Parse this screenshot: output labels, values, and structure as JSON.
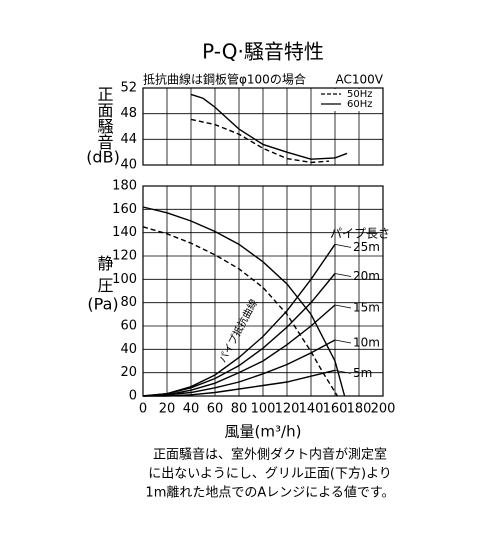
{
  "title": "P-Q·騒音特性",
  "subtitle": "抵抗曲線は鋼板管φ100の場合",
  "power": "AC100V",
  "x_label": "風量(m³/h)",
  "notes": [
    "正面騒音は、室外側ダクト内音が測定室",
    "に出ないようにし、グリル正面(下方)より",
    "1m離れた地点でのAレンジによる値です。"
  ],
  "chart_data": [
    {
      "type": "line",
      "y_label": "正面騒音",
      "y_unit": "(dB)",
      "legend": "upper right",
      "grid": true,
      "xlim": [
        0,
        200
      ],
      "xticks": [
        0,
        20,
        40,
        60,
        80,
        100,
        120,
        140,
        160,
        180,
        200
      ],
      "ylim": [
        40,
        52
      ],
      "yticks": [
        40,
        44,
        48,
        52
      ],
      "series": [
        {
          "name": "50Hz",
          "color": "#000000",
          "dash": true,
          "x": [
            40,
            60,
            80,
            100,
            120,
            140,
            155
          ],
          "values": [
            47.1,
            46.3,
            44.8,
            42.6,
            41,
            40.4,
            40.6
          ]
        },
        {
          "name": "60Hz",
          "color": "#000000",
          "dash": false,
          "x": [
            40,
            50,
            60,
            80,
            100,
            120,
            140,
            160,
            170
          ],
          "values": [
            51,
            50.4,
            49,
            45.6,
            43.2,
            42,
            40.9,
            41.1,
            41.8
          ]
        }
      ]
    },
    {
      "type": "line",
      "y_label": "静圧",
      "y_unit": "(Pa)",
      "grid": true,
      "annotation": "パイプ抵抗曲線",
      "series_title": "パイプ長さ",
      "xlim": [
        0,
        200
      ],
      "xticks": [
        0,
        20,
        40,
        60,
        80,
        100,
        120,
        140,
        160,
        180,
        200
      ],
      "ylim": [
        0,
        180
      ],
      "yticks": [
        0,
        20,
        40,
        60,
        80,
        100,
        120,
        140,
        160,
        180
      ],
      "series": [
        {
          "color": "#000000",
          "dash": true,
          "x": [
            0,
            20,
            40,
            60,
            80,
            100,
            120,
            140,
            150,
            162
          ],
          "values": [
            145,
            139,
            131,
            121,
            109,
            93,
            70,
            38,
            20,
            0
          ]
        },
        {
          "color": "#000000",
          "dash": false,
          "x": [
            0,
            20,
            40,
            60,
            80,
            100,
            120,
            140,
            160,
            168
          ],
          "values": [
            162,
            157,
            150,
            141,
            130,
            115,
            96,
            70,
            30,
            0
          ]
        },
        {
          "name": "25m",
          "color": "#000000",
          "dash": false,
          "x": [
            0,
            20,
            40,
            60,
            80,
            100,
            120,
            140,
            160
          ],
          "values": [
            0,
            2,
            8,
            18,
            33,
            51,
            73,
            100,
            130
          ]
        },
        {
          "name": "20m",
          "color": "#000000",
          "dash": false,
          "x": [
            0,
            20,
            40,
            60,
            80,
            100,
            120,
            140,
            160
          ],
          "values": [
            0,
            2,
            7,
            15,
            26,
            41,
            59,
            80,
            105
          ]
        },
        {
          "name": "15m",
          "color": "#000000",
          "dash": false,
          "x": [
            0,
            20,
            40,
            60,
            80,
            100,
            120,
            140,
            160
          ],
          "values": [
            0,
            1,
            5,
            11,
            20,
            30,
            44,
            60,
            78
          ]
        },
        {
          "name": "10m",
          "color": "#000000",
          "dash": false,
          "x": [
            0,
            20,
            40,
            60,
            80,
            100,
            120,
            140,
            160
          ],
          "values": [
            0,
            1,
            3,
            7,
            12,
            19,
            27,
            37,
            48
          ]
        },
        {
          "name": "5m",
          "color": "#000000",
          "dash": false,
          "x": [
            0,
            20,
            40,
            60,
            80,
            100,
            120,
            140,
            160
          ],
          "values": [
            0,
            0,
            1,
            3,
            6,
            9,
            12,
            17,
            22
          ]
        }
      ]
    }
  ]
}
